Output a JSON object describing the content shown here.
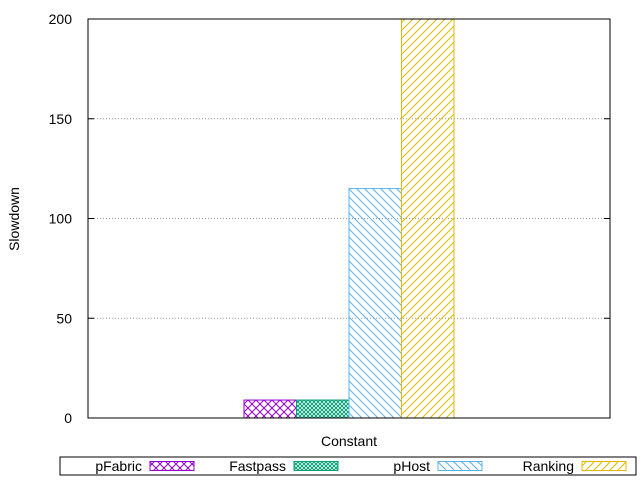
{
  "chart_data": {
    "type": "bar",
    "title": "",
    "xlabel": "",
    "ylabel": "Slowdown",
    "categories": [
      "Constant"
    ],
    "ylim": [
      0,
      200
    ],
    "yticks": [
      0,
      50,
      100,
      150,
      200
    ],
    "grid": "horizontal dotted",
    "legend_position": "bottom",
    "series": [
      {
        "name": "pFabric",
        "values": [
          9
        ],
        "color": "#9400d3",
        "pattern": "crosshatch"
      },
      {
        "name": "Fastpass",
        "values": [
          9
        ],
        "color": "#009e73",
        "pattern": "dense-crosshatch"
      },
      {
        "name": "pHost",
        "values": [
          115
        ],
        "color": "#56b4e9",
        "pattern": "diagonal-down"
      },
      {
        "name": "Ranking",
        "values": [
          200
        ],
        "color": "#e6b800",
        "pattern": "diagonal-up"
      }
    ]
  }
}
